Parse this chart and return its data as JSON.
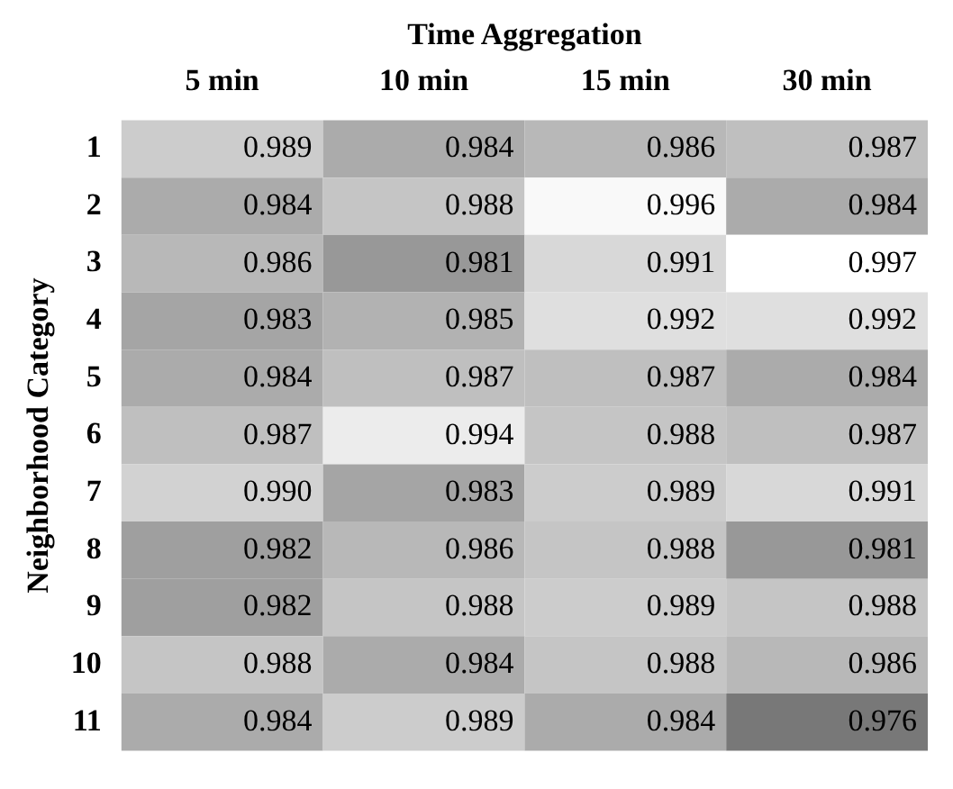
{
  "chart_data": {
    "type": "heatmap",
    "xlabel": "Time Aggregation",
    "ylabel": "Neighborhood Category",
    "categories": [
      "5 min",
      "10 min",
      "15 min",
      "30 min"
    ],
    "y_categories": [
      "1",
      "2",
      "3",
      "4",
      "5",
      "6",
      "7",
      "8",
      "9",
      "10",
      "11"
    ],
    "cells": [
      [
        0.989,
        0.984,
        0.986,
        0.987
      ],
      [
        0.984,
        0.988,
        0.996,
        0.984
      ],
      [
        0.986,
        0.981,
        0.991,
        0.997
      ],
      [
        0.983,
        0.985,
        0.992,
        0.992
      ],
      [
        0.984,
        0.987,
        0.987,
        0.984
      ],
      [
        0.987,
        0.994,
        0.988,
        0.987
      ],
      [
        0.99,
        0.983,
        0.989,
        0.991
      ],
      [
        0.982,
        0.986,
        0.988,
        0.981
      ],
      [
        0.982,
        0.988,
        0.989,
        0.988
      ],
      [
        0.988,
        0.984,
        0.988,
        0.986
      ],
      [
        0.984,
        0.989,
        0.984,
        0.976
      ]
    ],
    "cell_labels": [
      [
        "0.989",
        "0.984",
        "0.986",
        "0.987"
      ],
      [
        "0.984",
        "0.988",
        "0.996",
        "0.984"
      ],
      [
        "0.986",
        "0.981",
        "0.991",
        "0.997"
      ],
      [
        "0.983",
        "0.985",
        "0.992",
        "0.992"
      ],
      [
        "0.984",
        "0.987",
        "0.987",
        "0.984"
      ],
      [
        "0.987",
        "0.994",
        "0.988",
        "0.987"
      ],
      [
        "0.990",
        "0.983",
        "0.989",
        "0.991"
      ],
      [
        "0.982",
        "0.986",
        "0.988",
        "0.981"
      ],
      [
        "0.982",
        "0.988",
        "0.989",
        "0.988"
      ],
      [
        "0.988",
        "0.984",
        "0.988",
        "0.986"
      ],
      [
        "0.984",
        "0.989",
        "0.984",
        "0.976"
      ]
    ],
    "data_labels": true
  }
}
